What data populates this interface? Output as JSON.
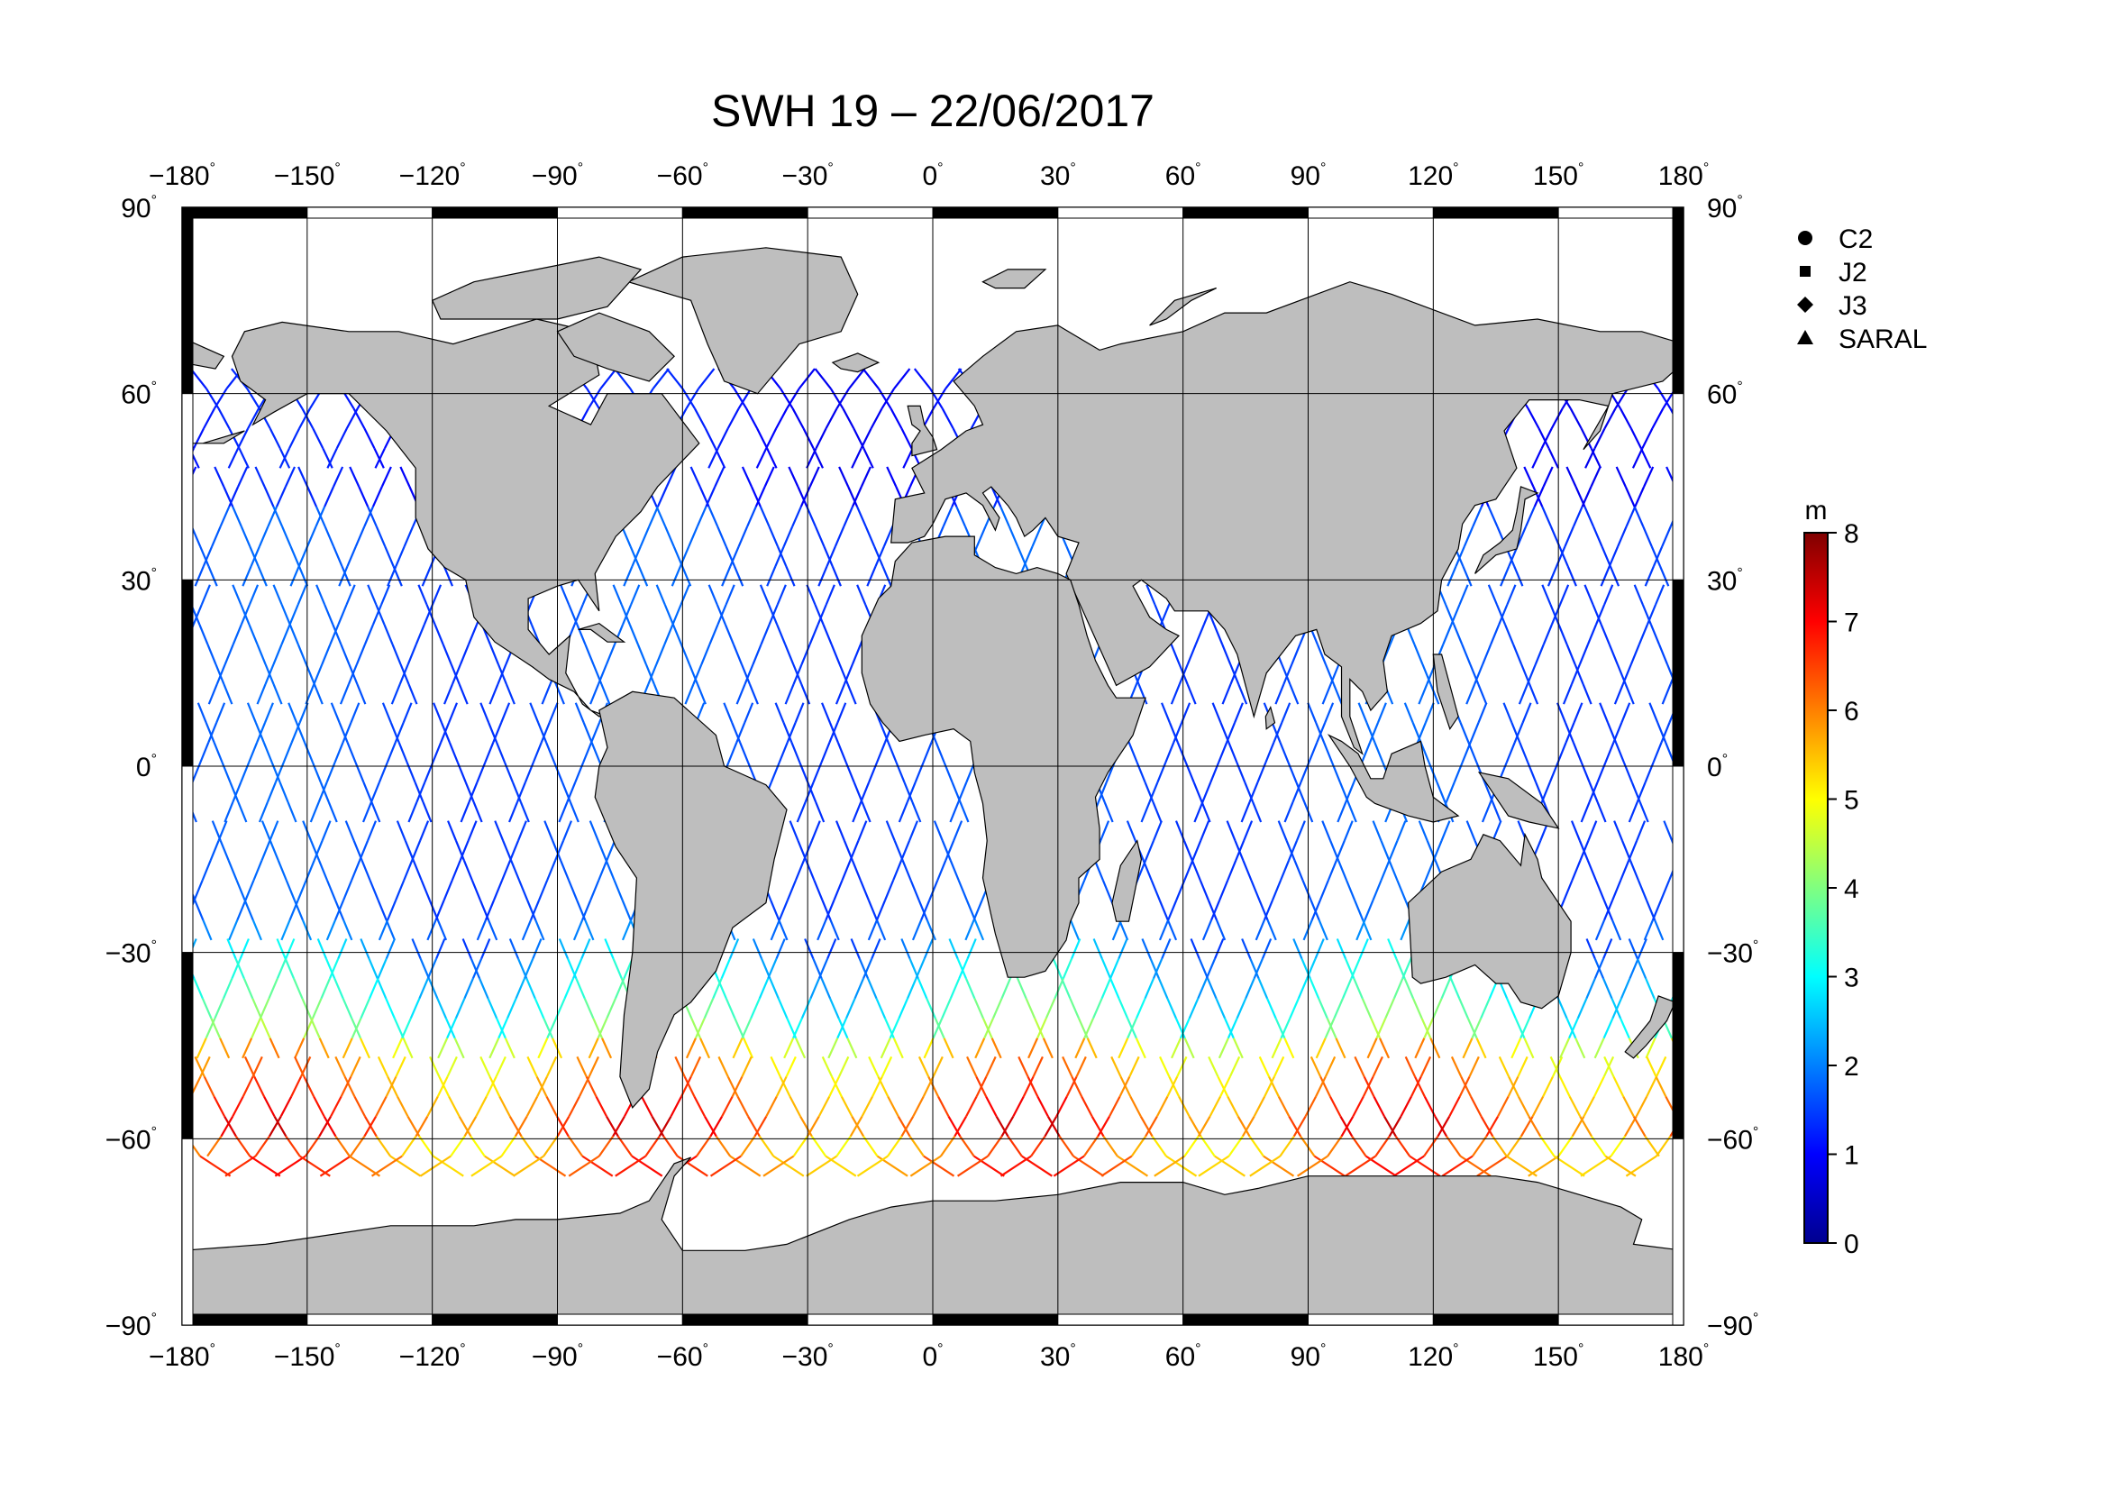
{
  "title": "SWH 19 – 22/06/2017",
  "map": {
    "lon_ticks": [
      "−180",
      "−150",
      "−120",
      "−90",
      "−60",
      "−30",
      "0",
      "30",
      "60",
      "90",
      "120",
      "150",
      "180"
    ],
    "lat_ticks": [
      "90",
      "60",
      "30",
      "0",
      "−30",
      "−60",
      "−90"
    ],
    "degree_symbol": "°",
    "land_color": "#bebebe",
    "ocean_color": "#ffffff"
  },
  "legend": {
    "items": [
      {
        "label": "C2",
        "marker": "circle-icon"
      },
      {
        "label": "J2",
        "marker": "square-icon"
      },
      {
        "label": "J3",
        "marker": "diamond-icon"
      },
      {
        "label": "SARAL",
        "marker": "triangle-icon"
      }
    ]
  },
  "colorbar": {
    "unit": "m",
    "ticks": [
      "0",
      "1",
      "2",
      "3",
      "4",
      "5",
      "6",
      "7",
      "8"
    ],
    "range": [
      0,
      8
    ],
    "colors": [
      "#00008f",
      "#0000ff",
      "#0080ff",
      "#00ffff",
      "#80ff80",
      "#ffff00",
      "#ff8000",
      "#ff0000",
      "#800000"
    ]
  }
}
